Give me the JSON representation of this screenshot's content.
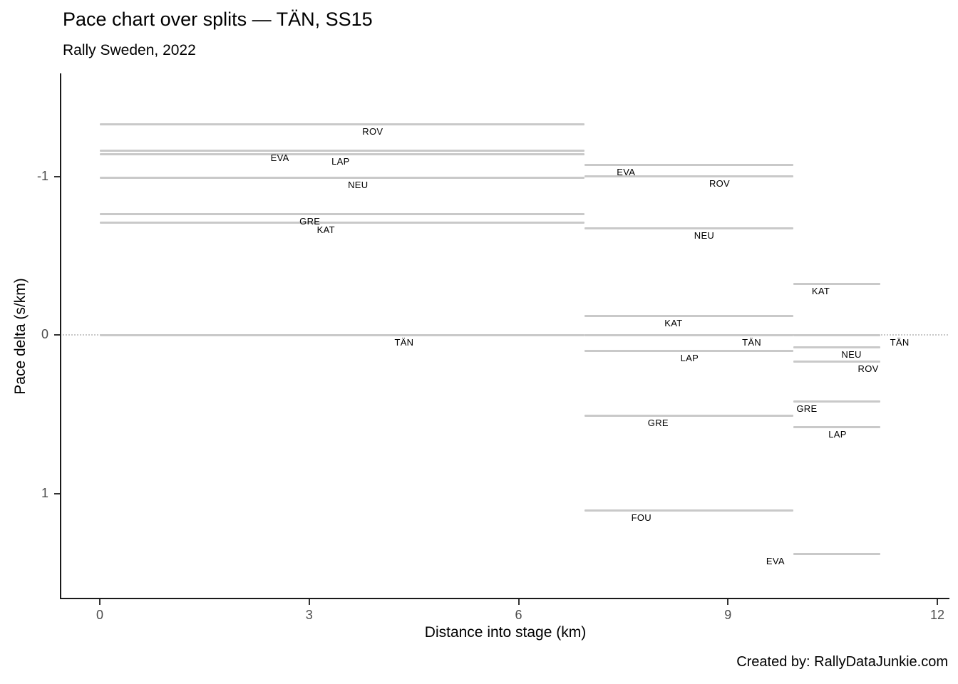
{
  "header": {
    "title": "Pace chart over splits — TÄN, SS15",
    "subtitle": "Rally Sweden, 2022"
  },
  "caption": {
    "text": "Created by: RallyDataJunkie.com"
  },
  "chart_data": {
    "type": "line",
    "subtype": "horizontal-split-pace-segments",
    "title": "Pace chart over splits — TÄN, SS15",
    "subtitle": "Rally Sweden, 2022",
    "xlabel": "Distance into stage (km)",
    "ylabel": "Pace delta (s/km)",
    "grid": false,
    "legend": false,
    "y_axis_inverted": true,
    "xlim": [
      -0.55,
      12.15
    ],
    "ylim": [
      -1.65,
      1.66
    ],
    "x_ticks": {
      "values": [
        0,
        3,
        6,
        9,
        12
      ],
      "labels": [
        "0",
        "3",
        "6",
        "9",
        "12"
      ]
    },
    "y_ticks": {
      "values": [
        -1,
        0,
        1
      ],
      "labels": [
        "-1",
        "0",
        "1"
      ]
    },
    "split_boundaries_km": [
      0,
      6.94,
      9.94,
      11.18
    ],
    "reference_line": {
      "driver": "TÄN",
      "value": 0,
      "style": "dotted"
    },
    "segment_color": "#c9c9c9",
    "label_color": "#000000",
    "segments": [
      {
        "driver": "ROV",
        "split": 1,
        "x0": 0,
        "x1": 6.94,
        "value": -1.33,
        "label_x": 3.91
      },
      {
        "driver": "EVA",
        "split": 1,
        "x0": 0,
        "x1": 6.94,
        "value": -1.16,
        "label_x": 2.58
      },
      {
        "driver": "LAP",
        "split": 1,
        "x0": 0,
        "x1": 6.94,
        "value": -1.14,
        "label_x": 3.45
      },
      {
        "driver": "NEU",
        "split": 1,
        "x0": 0,
        "x1": 6.94,
        "value": -0.99,
        "label_x": 3.7
      },
      {
        "driver": "GRE",
        "split": 1,
        "x0": 0,
        "x1": 6.94,
        "value": -0.76,
        "label_x": 3.01
      },
      {
        "driver": "KAT",
        "split": 1,
        "x0": 0,
        "x1": 6.94,
        "value": -0.71,
        "label_x": 3.24
      },
      {
        "driver": "TÄN",
        "split": 1,
        "x0": 0,
        "x1": 6.94,
        "value": 0.0,
        "label_x": 4.36
      },
      {
        "driver": "EVA",
        "split": 2,
        "x0": 6.94,
        "x1": 9.94,
        "value": -1.07,
        "label_x": 7.54
      },
      {
        "driver": "ROV",
        "split": 2,
        "x0": 6.94,
        "x1": 9.94,
        "value": -1.0,
        "label_x": 8.88
      },
      {
        "driver": "NEU",
        "split": 2,
        "x0": 6.94,
        "x1": 9.94,
        "value": -0.67,
        "label_x": 8.66
      },
      {
        "driver": "KAT",
        "split": 2,
        "x0": 6.94,
        "x1": 9.94,
        "value": -0.12,
        "label_x": 8.22
      },
      {
        "driver": "TÄN",
        "split": 2,
        "x0": 6.94,
        "x1": 9.94,
        "value": 0.0,
        "label_x": 9.34
      },
      {
        "driver": "LAP",
        "split": 2,
        "x0": 6.94,
        "x1": 9.94,
        "value": 0.1,
        "label_x": 8.45
      },
      {
        "driver": "GRE",
        "split": 2,
        "x0": 6.94,
        "x1": 9.94,
        "value": 0.51,
        "label_x": 8.0
      },
      {
        "driver": "FOU",
        "split": 2,
        "x0": 6.94,
        "x1": 9.94,
        "value": 1.11,
        "label_x": 7.76
      },
      {
        "driver": "KAT",
        "split": 3,
        "x0": 9.94,
        "x1": 11.18,
        "value": -0.32,
        "label_x": 10.33
      },
      {
        "driver": "TÄN",
        "split": 3,
        "x0": 9.94,
        "x1": 11.18,
        "value": 0.0,
        "label_x": 11.46
      },
      {
        "driver": "NEU",
        "split": 3,
        "x0": 9.94,
        "x1": 11.18,
        "value": 0.08,
        "label_x": 10.77
      },
      {
        "driver": "ROV",
        "split": 3,
        "x0": 9.94,
        "x1": 11.18,
        "value": 0.17,
        "label_x": 11.01
      },
      {
        "driver": "GRE",
        "split": 3,
        "x0": 9.94,
        "x1": 11.18,
        "value": 0.42,
        "label_x": 10.13
      },
      {
        "driver": "LAP",
        "split": 3,
        "x0": 9.94,
        "x1": 11.18,
        "value": 0.58,
        "label_x": 10.57
      },
      {
        "driver": "EVA",
        "split": 3,
        "x0": 9.94,
        "x1": 11.18,
        "value": 1.38,
        "label_x": 9.68
      }
    ]
  }
}
